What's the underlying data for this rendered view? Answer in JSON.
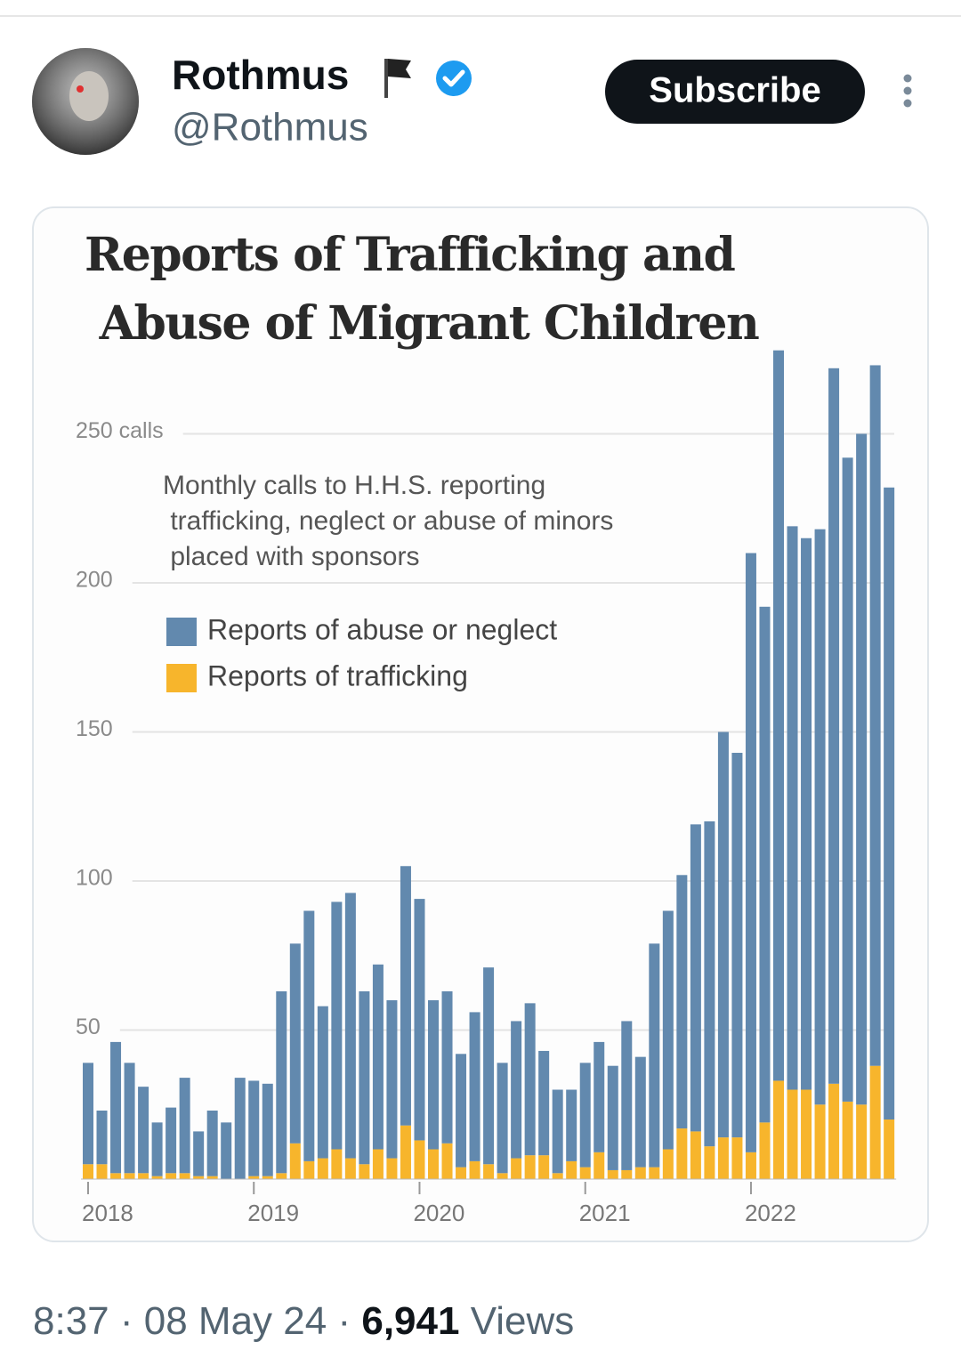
{
  "post": {
    "author": "Rothmus",
    "handle": "@Rothmus",
    "button": "Subscribe",
    "time": "8:37",
    "separator": "·",
    "date": "08 May 24",
    "views": "6,941",
    "views_label": "Views"
  },
  "chart_data": {
    "type": "stacked-bar",
    "title": "Reports of Trafficking and Abuse of Migrant Children",
    "subtitle": "Monthly calls to H.H.S. reporting trafficking, neglect or abuse of minors placed with sponsors",
    "categories": [
      "2018",
      null,
      null,
      null,
      null,
      null,
      null,
      null,
      null,
      null,
      null,
      null,
      "2019",
      null,
      null,
      null,
      null,
      null,
      null,
      null,
      null,
      null,
      null,
      null,
      "2020",
      null,
      null,
      null,
      null,
      null,
      null,
      null,
      null,
      null,
      null,
      null,
      "2021",
      null,
      null,
      null,
      null,
      null,
      null,
      null,
      null,
      null,
      null,
      null,
      "2022",
      null,
      null,
      null,
      null,
      null,
      null,
      null,
      null,
      null,
      null
    ],
    "series": [
      {
        "name": "Reports of abuse or neglect",
        "color": "#6289ae",
        "values": [
          34,
          18,
          44,
          37,
          29,
          18,
          22,
          32,
          15,
          22,
          19,
          34,
          32,
          31,
          61,
          67,
          84,
          51,
          83,
          89,
          58,
          62,
          53,
          87,
          81,
          50,
          51,
          38,
          50,
          66,
          37,
          46,
          51,
          35,
          28,
          24,
          35,
          37,
          35,
          50,
          37,
          75,
          80,
          85,
          103,
          109,
          136,
          129,
          201,
          173,
          245,
          189,
          185,
          193,
          240,
          216,
          225,
          235,
          212
        ]
      },
      {
        "name": "Reports of trafficking",
        "color": "#f7b52c",
        "values": [
          5,
          5,
          2,
          2,
          2,
          1,
          2,
          2,
          1,
          1,
          0,
          0,
          1,
          1,
          2,
          12,
          6,
          7,
          10,
          7,
          5,
          10,
          7,
          18,
          13,
          10,
          12,
          4,
          6,
          5,
          2,
          7,
          8,
          8,
          2,
          6,
          4,
          9,
          3,
          3,
          4,
          4,
          10,
          17,
          16,
          11,
          14,
          14,
          9,
          19,
          33,
          30,
          30,
          25,
          32,
          26,
          25,
          38,
          20
        ]
      }
    ],
    "ylim": [
      0,
      280
    ],
    "yticks": [
      50,
      100,
      150,
      200,
      {
        "value": 250,
        "label": "250 calls"
      }
    ],
    "grid": true
  }
}
